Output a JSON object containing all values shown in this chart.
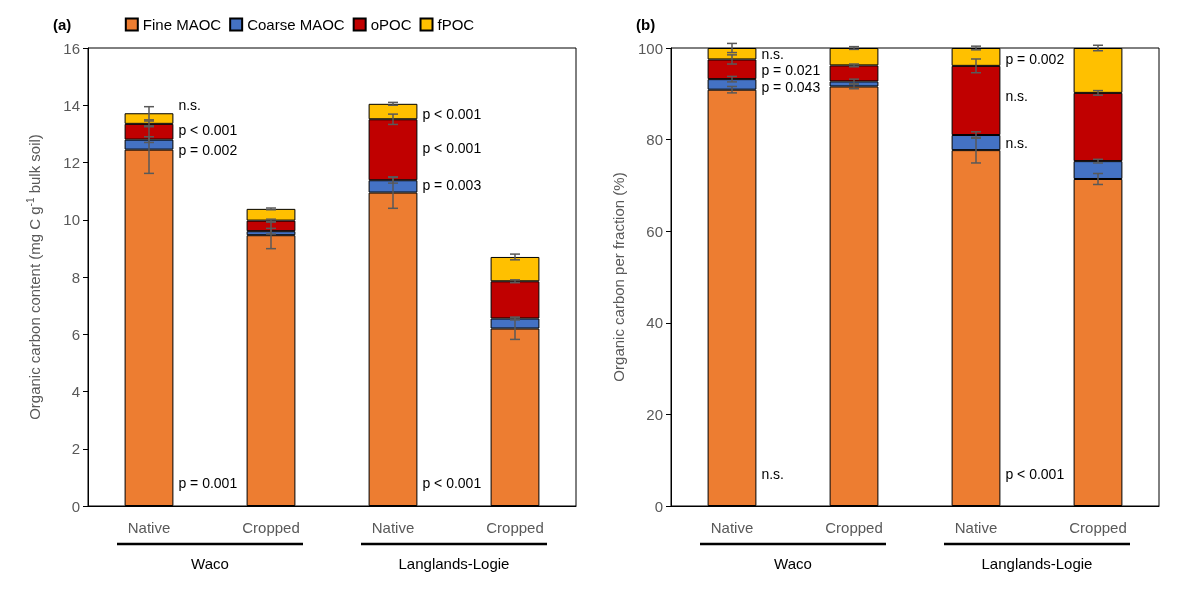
{
  "chart_data": [
    {
      "type": "bar",
      "title": "(a)",
      "ylabel": "Organic carbon content (mg C g$^{-1}$ bulk soil)",
      "categories": [
        "Native",
        "Cropped",
        "Native",
        "Cropped"
      ],
      "stacked": true,
      "legend": "top",
      "ylim": [
        0,
        16
      ],
      "yticks": [
        0,
        2,
        4,
        6,
        8,
        10,
        12,
        14,
        16
      ],
      "series": [
        {
          "name": "Fine MAOC",
          "color": "#ed7d31",
          "values": [
            12.45,
            9.46,
            10.95,
            6.2
          ],
          "errors": [
            0.83,
            0.47,
            0.55,
            0.38
          ]
        },
        {
          "name": "Coarse MAOC",
          "color": "#4472c4",
          "values": [
            0.35,
            0.14,
            0.43,
            0.35
          ],
          "errors": [
            0.1,
            0.1,
            0.1,
            0.05
          ]
        },
        {
          "name": "oPOC",
          "color": "#c00000",
          "values": [
            0.55,
            0.37,
            2.13,
            1.3
          ],
          "errors": [
            0.1,
            0.05,
            0.18,
            0.05
          ]
        },
        {
          "name": "fPOC",
          "color": "#ffc000",
          "values": [
            0.37,
            0.41,
            0.54,
            0.85
          ],
          "errors": [
            0.23,
            0.03,
            0.05,
            0.1
          ]
        }
      ],
      "annotations": [
        "Waco",
        "Langlands-Logie",
        "n.s.",
        "p < 0.001",
        "p = 0.002",
        "p = 0.001",
        "p < 0.001",
        "p < 0.001",
        "p = 0.003",
        "p < 0.001"
      ]
    },
    {
      "type": "bar",
      "title": "(b)",
      "ylabel": "Organic carbon per fraction (%)",
      "categories": [
        "Native",
        "Cropped",
        "Native",
        "Cropped"
      ],
      "stacked": true,
      "ylim": [
        0,
        100
      ],
      "yticks": [
        0,
        20,
        40,
        60,
        80,
        100
      ],
      "series": [
        {
          "color": "#ed7d31",
          "values": [
            90.9,
            91.6,
            77.7,
            71.4
          ],
          "errors": [
            0.7,
            0.5,
            2.8,
            1.2
          ]
        },
        {
          "color": "#4472c4",
          "values": [
            2.3,
            1.1,
            3.3,
            3.9
          ],
          "errors": [
            0.6,
            0.5,
            0.7,
            0.4
          ]
        },
        {
          "color": "#c00000",
          "values": [
            4.3,
            3.5,
            15.1,
            14.9
          ],
          "errors": [
            1.0,
            0.3,
            1.5,
            0.5
          ]
        },
        {
          "color": "#ffc000",
          "values": [
            2.5,
            3.8,
            3.9,
            9.8
          ],
          "errors": [
            1.0,
            0.3,
            0.4,
            0.6
          ]
        }
      ],
      "annotations": [
        "Waco",
        "Langlands-Logie",
        "n.s.",
        "p = 0.021",
        "p = 0.043",
        "n.s.",
        "p = 0.002",
        "n.s.",
        "n.s.",
        "p < 0.001"
      ]
    }
  ]
}
